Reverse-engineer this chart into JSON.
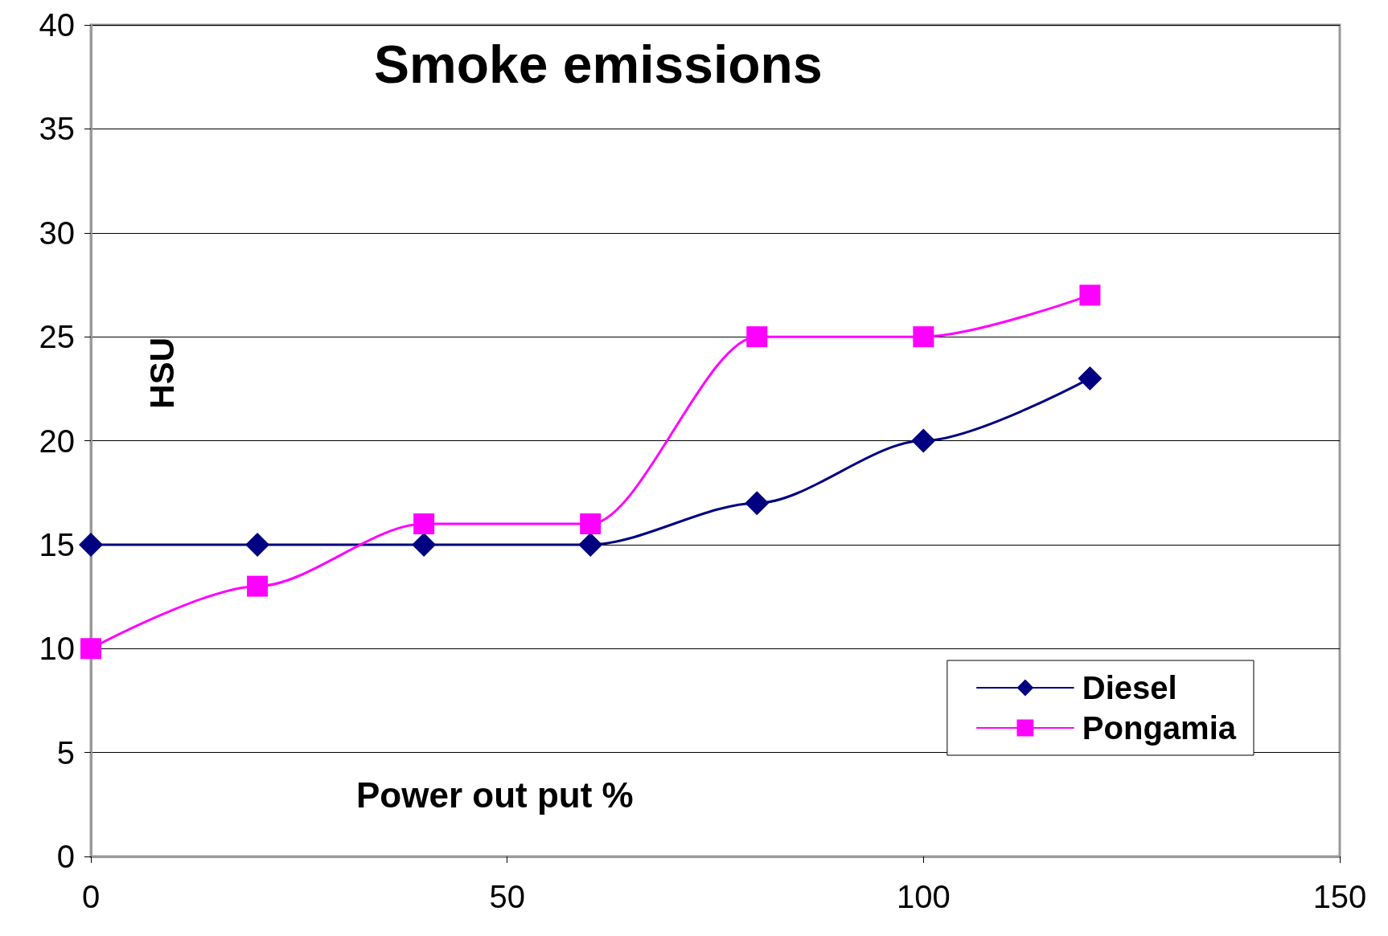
{
  "chart_data": {
    "type": "line",
    "title": "Smoke emissions",
    "xlabel": "Power out put %",
    "ylabel": "HSU",
    "x": [
      0,
      20,
      40,
      60,
      80,
      100,
      120
    ],
    "series": [
      {
        "name": "Diesel",
        "color": "#000080",
        "marker": "diamond",
        "values": [
          15,
          15,
          15,
          15,
          17,
          20,
          23
        ]
      },
      {
        "name": "Pongamia",
        "color": "#ff00ff",
        "marker": "square",
        "values": [
          10,
          13,
          16,
          16,
          25,
          25,
          27
        ]
      }
    ],
    "xlim": [
      0,
      150
    ],
    "xticks": [
      0,
      50,
      100,
      150
    ],
    "ylim": [
      0,
      40
    ],
    "yticks": [
      0,
      5,
      10,
      15,
      20,
      25,
      30,
      35,
      40
    ],
    "grid": "y",
    "legend": "bottom right"
  }
}
